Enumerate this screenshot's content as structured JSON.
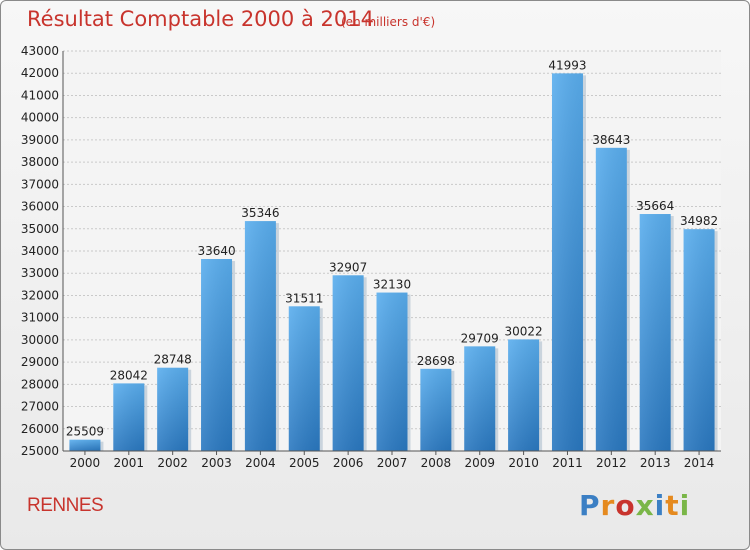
{
  "chart_data": {
    "type": "bar",
    "title": "Résultat Comptable 2000 à 2014",
    "unit": "(en milliers d'€)",
    "categories": [
      "2000",
      "2001",
      "2002",
      "2003",
      "2004",
      "2005",
      "2006",
      "2007",
      "2008",
      "2009",
      "2010",
      "2011",
      "2012",
      "2013",
      "2014"
    ],
    "values": [
      25509,
      28042,
      28748,
      33640,
      35346,
      31511,
      32907,
      32130,
      28698,
      29709,
      30022,
      41993,
      38643,
      35664,
      34982
    ],
    "ylim": [
      25000,
      43000
    ],
    "yticks": [
      25000,
      26000,
      27000,
      28000,
      29000,
      30000,
      31000,
      32000,
      33000,
      34000,
      35000,
      36000,
      37000,
      38000,
      39000,
      40000,
      41000,
      42000,
      43000
    ],
    "grid": true,
    "bar_color": "#3d8fd6"
  },
  "footer": {
    "city": "RENNES",
    "logo": "Proxiti",
    "logo_colors": [
      "#3b7fc4",
      "#e58a1f",
      "#c8342d",
      "#7ab648",
      "#3b7fc4",
      "#e58a1f",
      "#7ab648"
    ]
  }
}
